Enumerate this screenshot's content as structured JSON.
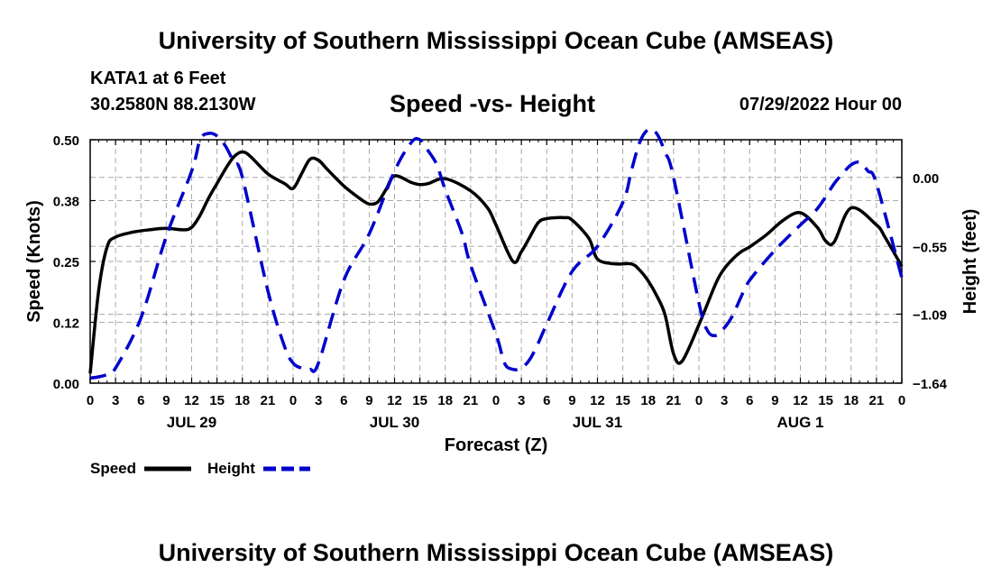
{
  "header": {
    "title": "University of Southern Mississippi Ocean Cube (AMSEAS)",
    "station": "KATA1 at 6 Feet",
    "coords": "30.2580N  88.2130W",
    "date": "07/29/2022 Hour 00"
  },
  "footer": {
    "title": "University of Southern Mississippi Ocean Cube (AMSEAS)"
  },
  "chart_data": {
    "type": "line",
    "title": "Speed -vs- Height",
    "xlabel": "Forecast (Z)",
    "ylabel_left": "Speed (Knots)",
    "ylabel_right": "Height (feet)",
    "x_unit": "forecast hour from 07/29/2022 00Z",
    "xlim": [
      0,
      96
    ],
    "ylim_left": [
      0,
      0.5
    ],
    "ylim_right": [
      -1.64,
      0.3
    ],
    "grid": true,
    "x_tick_hours": [
      0,
      3,
      6,
      9,
      12,
      15,
      18,
      21,
      24,
      27,
      30,
      33,
      36,
      39,
      42,
      45,
      48,
      51,
      54,
      57,
      60,
      63,
      66,
      69,
      72,
      75,
      78,
      81,
      84,
      87,
      90,
      93,
      96
    ],
    "x_tick_labels": [
      "0",
      "3",
      "6",
      "9",
      "12",
      "15",
      "18",
      "21",
      "0",
      "3",
      "6",
      "9",
      "12",
      "15",
      "18",
      "21",
      "0",
      "3",
      "6",
      "9",
      "12",
      "15",
      "18",
      "21",
      "0",
      "3",
      "6",
      "9",
      "12",
      "15",
      "18",
      "21",
      "0"
    ],
    "day_labels": [
      {
        "hour": 12,
        "label": "JUL 29"
      },
      {
        "hour": 36,
        "label": "JUL 30"
      },
      {
        "hour": 60,
        "label": "JUL 31"
      },
      {
        "hour": 84,
        "label": "AUG 1"
      }
    ],
    "y_left_ticks": [
      0.0,
      0.125,
      0.25,
      0.375,
      0.5
    ],
    "y_left_tick_labels": [
      "0.00",
      "0.12",
      "0.25",
      "0.38",
      "0.50"
    ],
    "y_right_ticks": [
      -1.64,
      -1.09,
      -0.55,
      0.0
    ],
    "y_right_tick_labels": [
      "−1.64",
      "−1.09",
      "−0.55",
      "0.00"
    ],
    "legend": [
      {
        "name": "Speed",
        "color": "#000000",
        "dash": "solid"
      },
      {
        "name": "Height",
        "color": "#0000cc",
        "dash": "dashed"
      }
    ],
    "series": [
      {
        "name": "Speed",
        "axis": "left",
        "color": "#000000",
        "x": [
          0,
          1,
          2,
          3,
          5,
          7,
          9,
          11,
          12,
          13,
          14,
          15,
          16,
          17,
          18,
          19,
          21,
          23,
          24,
          25,
          26,
          27,
          28,
          30,
          32,
          33,
          34,
          35,
          36,
          38,
          39,
          40,
          42,
          45,
          47,
          48,
          50,
          51,
          52,
          53,
          54,
          56,
          57,
          59,
          60,
          62,
          64,
          65,
          66,
          67,
          68,
          69,
          70,
          72,
          74,
          75,
          76,
          77,
          78,
          80,
          82,
          84,
          86,
          87,
          88,
          90,
          93,
          94,
          96
        ],
        "values": [
          0.02,
          0.19,
          0.28,
          0.3,
          0.31,
          0.315,
          0.318,
          0.315,
          0.32,
          0.345,
          0.38,
          0.41,
          0.44,
          0.465,
          0.475,
          0.465,
          0.43,
          0.41,
          0.4,
          0.43,
          0.46,
          0.458,
          0.44,
          0.405,
          0.378,
          0.368,
          0.372,
          0.398,
          0.426,
          0.412,
          0.408,
          0.41,
          0.42,
          0.395,
          0.36,
          0.325,
          0.25,
          0.27,
          0.3,
          0.33,
          0.338,
          0.34,
          0.335,
          0.297,
          0.255,
          0.245,
          0.245,
          0.232,
          0.21,
          0.18,
          0.14,
          0.06,
          0.045,
          0.12,
          0.205,
          0.235,
          0.255,
          0.27,
          0.28,
          0.305,
          0.335,
          0.35,
          0.32,
          0.292,
          0.29,
          0.36,
          0.325,
          0.3,
          0.24
        ]
      },
      {
        "name": "Height",
        "axis": "right",
        "color": "#0000cc",
        "x": [
          0,
          1,
          2,
          3,
          6,
          9,
          12,
          13,
          14,
          15,
          16,
          17,
          18,
          21,
          23,
          24,
          25,
          26,
          27,
          30,
          33,
          36,
          38,
          39,
          40,
          41,
          42,
          44,
          45,
          48,
          49,
          50,
          51,
          52,
          53,
          54,
          57,
          60,
          63,
          64,
          65,
          66,
          67,
          68,
          69,
          72,
          73,
          74,
          75,
          76,
          77,
          78,
          81,
          84,
          86,
          88,
          89,
          90,
          91,
          92,
          93,
          96
        ],
        "values": [
          -1.6,
          -1.59,
          -1.57,
          -1.52,
          -1.12,
          -0.47,
          0.05,
          0.3,
          0.35,
          0.33,
          0.25,
          0.12,
          0.0,
          -0.9,
          -1.35,
          -1.48,
          -1.52,
          -1.53,
          -1.48,
          -0.82,
          -0.45,
          0.05,
          0.28,
          0.3,
          0.21,
          0.1,
          -0.1,
          -0.45,
          -0.7,
          -1.25,
          -1.48,
          -1.53,
          -1.52,
          -1.45,
          -1.32,
          -1.17,
          -0.75,
          -0.55,
          -0.2,
          0.05,
          0.28,
          0.38,
          0.35,
          0.2,
          0.0,
          -1.0,
          -1.22,
          -1.26,
          -1.2,
          -1.1,
          -0.95,
          -0.82,
          -0.58,
          -0.38,
          -0.25,
          -0.05,
          0.03,
          0.1,
          0.12,
          0.05,
          -0.05,
          -0.8
        ]
      }
    ]
  }
}
